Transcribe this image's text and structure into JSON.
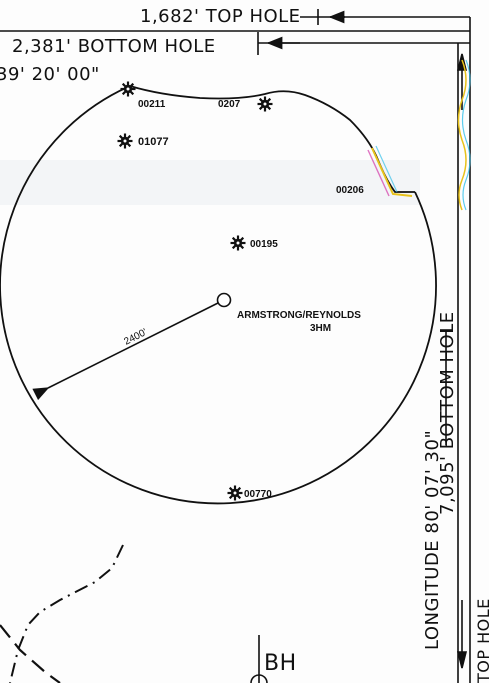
{
  "dimensions": {
    "top_hole": "1,682' TOP HOLE",
    "bottom_hole_top": "2,381' BOTTOM HOLE",
    "latitude_partial": "39' 20' 00\"",
    "bottom_hole_right": "7,095' BOTTOM HOLE",
    "longitude": "LONGITUDE 80' 07' 30\"",
    "top_hole_right_partial": "TOP HOLE"
  },
  "radius_label": "2400'",
  "center_label_line1": "ARMSTRONG/REYNOLDS",
  "center_label_line2": "3HM",
  "wells": [
    {
      "id": "00211"
    },
    {
      "id": "0207"
    },
    {
      "id": "01077"
    },
    {
      "id": "00206"
    },
    {
      "id": "00195"
    },
    {
      "id": "00770"
    }
  ],
  "bh_label": "BH",
  "colors": {
    "ink": "#111111",
    "fringe_yellow": "#e8c21a",
    "fringe_cyan": "#33bfe8",
    "fringe_magenta": "#d33aa8"
  }
}
